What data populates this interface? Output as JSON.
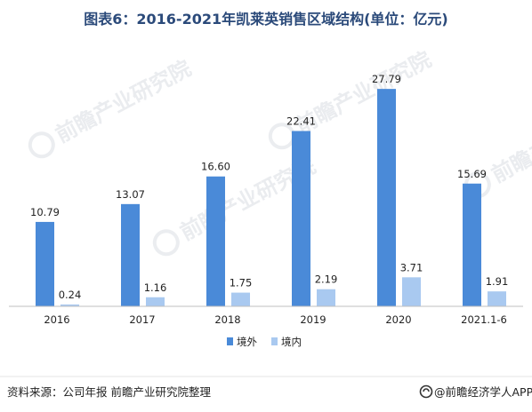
{
  "colors": {
    "title": "#2b4a7a",
    "series_overseas": "#4a8ad8",
    "series_domestic": "#a9c9f0",
    "axis": "#bfbfbf",
    "text": "#222222"
  },
  "watermark": {
    "text": "前瞻产业研究院"
  },
  "footer": {
    "source": "资料来源：公司年报 前瞻产业研究院整理",
    "brand_icon": "qianzhan-logo-icon",
    "brand": "@前瞻经济学人APP"
  },
  "chart_data": {
    "type": "bar",
    "title": "图表6：2016-2021年凯莱英销售区域结构(单位：亿元)",
    "xlabel": "",
    "ylabel": "",
    "categories": [
      "2016",
      "2017",
      "2018",
      "2019",
      "2020",
      "2021.1-6"
    ],
    "series": [
      {
        "name": "境外",
        "values": [
          10.79,
          13.07,
          16.6,
          22.41,
          27.79,
          15.69
        ],
        "labels": [
          "10.79",
          "13.07",
          "16.60",
          "22.41",
          "27.79",
          "15.69"
        ]
      },
      {
        "name": "境内",
        "values": [
          0.24,
          1.16,
          1.75,
          2.19,
          3.71,
          1.91
        ],
        "labels": [
          "0.24",
          "1.16",
          "1.75",
          "2.19",
          "3.71",
          "1.91"
        ]
      }
    ],
    "ylim": [
      0,
      28.6
    ],
    "grid": false,
    "legend_position": "bottom-center"
  }
}
